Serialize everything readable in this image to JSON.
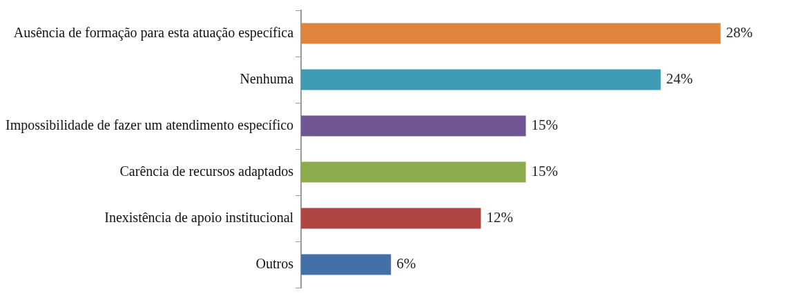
{
  "chart_data": {
    "type": "bar",
    "orientation": "horizontal",
    "categories": [
      "Ausência de formação para esta atuação específica",
      "Nenhuma",
      "Impossibilidade de fazer um atendimento específico",
      "Carência de recursos adaptados",
      "Inexistência de apoio institucional",
      "Outros"
    ],
    "values": [
      28,
      24,
      15,
      15,
      12,
      6
    ],
    "colors": [
      "#e0843d",
      "#3f9bb3",
      "#6f5592",
      "#8cab4c",
      "#b04440",
      "#4470a8"
    ],
    "value_labels": [
      "28%",
      "24%",
      "15%",
      "15%",
      "12%",
      "6%"
    ],
    "legend": false
  }
}
